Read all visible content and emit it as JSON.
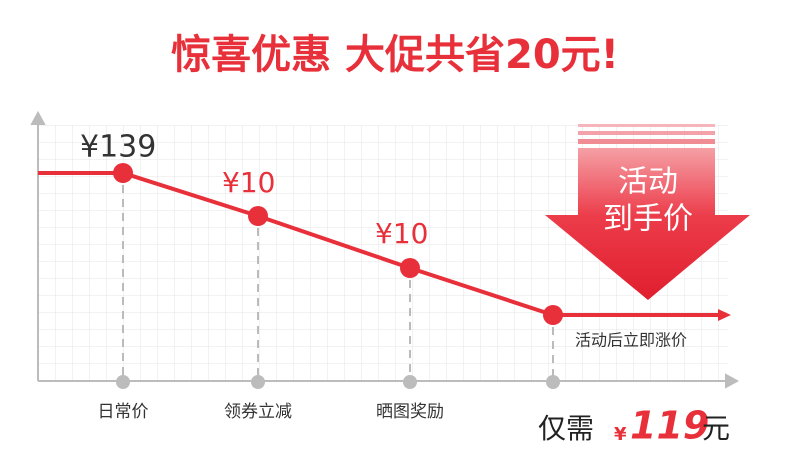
{
  "title": "惊喜优惠 大促共省20元!",
  "steps": [
    {
      "price": "¥139",
      "label": "日常价"
    },
    {
      "price": "¥10",
      "label": "领券立减"
    },
    {
      "price": "¥10",
      "label": "晒图奖励"
    }
  ],
  "note": "活动后立即涨价",
  "badge": {
    "line1": "活动",
    "line2": "到手价"
  },
  "final": {
    "prefix": "仅需",
    "currency": "¥",
    "amount": "119",
    "suffix": "元"
  }
}
